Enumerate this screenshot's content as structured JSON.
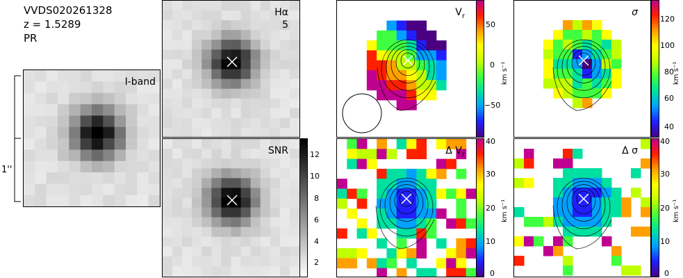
{
  "header": {
    "object_id": "VVDS020261328",
    "redshift": "z = 1.5289",
    "class": "PR"
  },
  "scale_bar": {
    "label": "1''"
  },
  "panels": {
    "iband": {
      "label": "I-band"
    },
    "halpha": {
      "label": "Hα",
      "sublabel": "5"
    },
    "snr": {
      "label": "SNR",
      "colorbar_ticks": [
        "12",
        "10",
        "8",
        "6",
        "4",
        "2"
      ]
    },
    "vr": {
      "label": "V",
      "label_sub": "r",
      "unit": "km s⁻¹",
      "colorbar_ticks": [
        "50",
        "0",
        "−50"
      ]
    },
    "sigma": {
      "label": "σ",
      "unit": "km s⁻¹",
      "colorbar_ticks": [
        "120",
        "100",
        "80",
        "60",
        "40"
      ]
    },
    "dvr": {
      "label": "Δ V",
      "label_sub": "r",
      "unit": "km s⁻¹",
      "colorbar_ticks": [
        "40",
        "30",
        "20",
        "10",
        "0"
      ]
    },
    "dsigma": {
      "label": "Δ σ",
      "unit": "km s⁻¹",
      "colorbar_ticks": [
        "40",
        "30",
        "20",
        "10",
        "0"
      ]
    }
  },
  "colors": {
    "rainbow": [
      "#4b0082",
      "#2020ff",
      "#00a0ff",
      "#00e0a0",
      "#40ff40",
      "#c0ff00",
      "#ffff00",
      "#ffa000",
      "#ff2000",
      "#c00090"
    ]
  }
}
